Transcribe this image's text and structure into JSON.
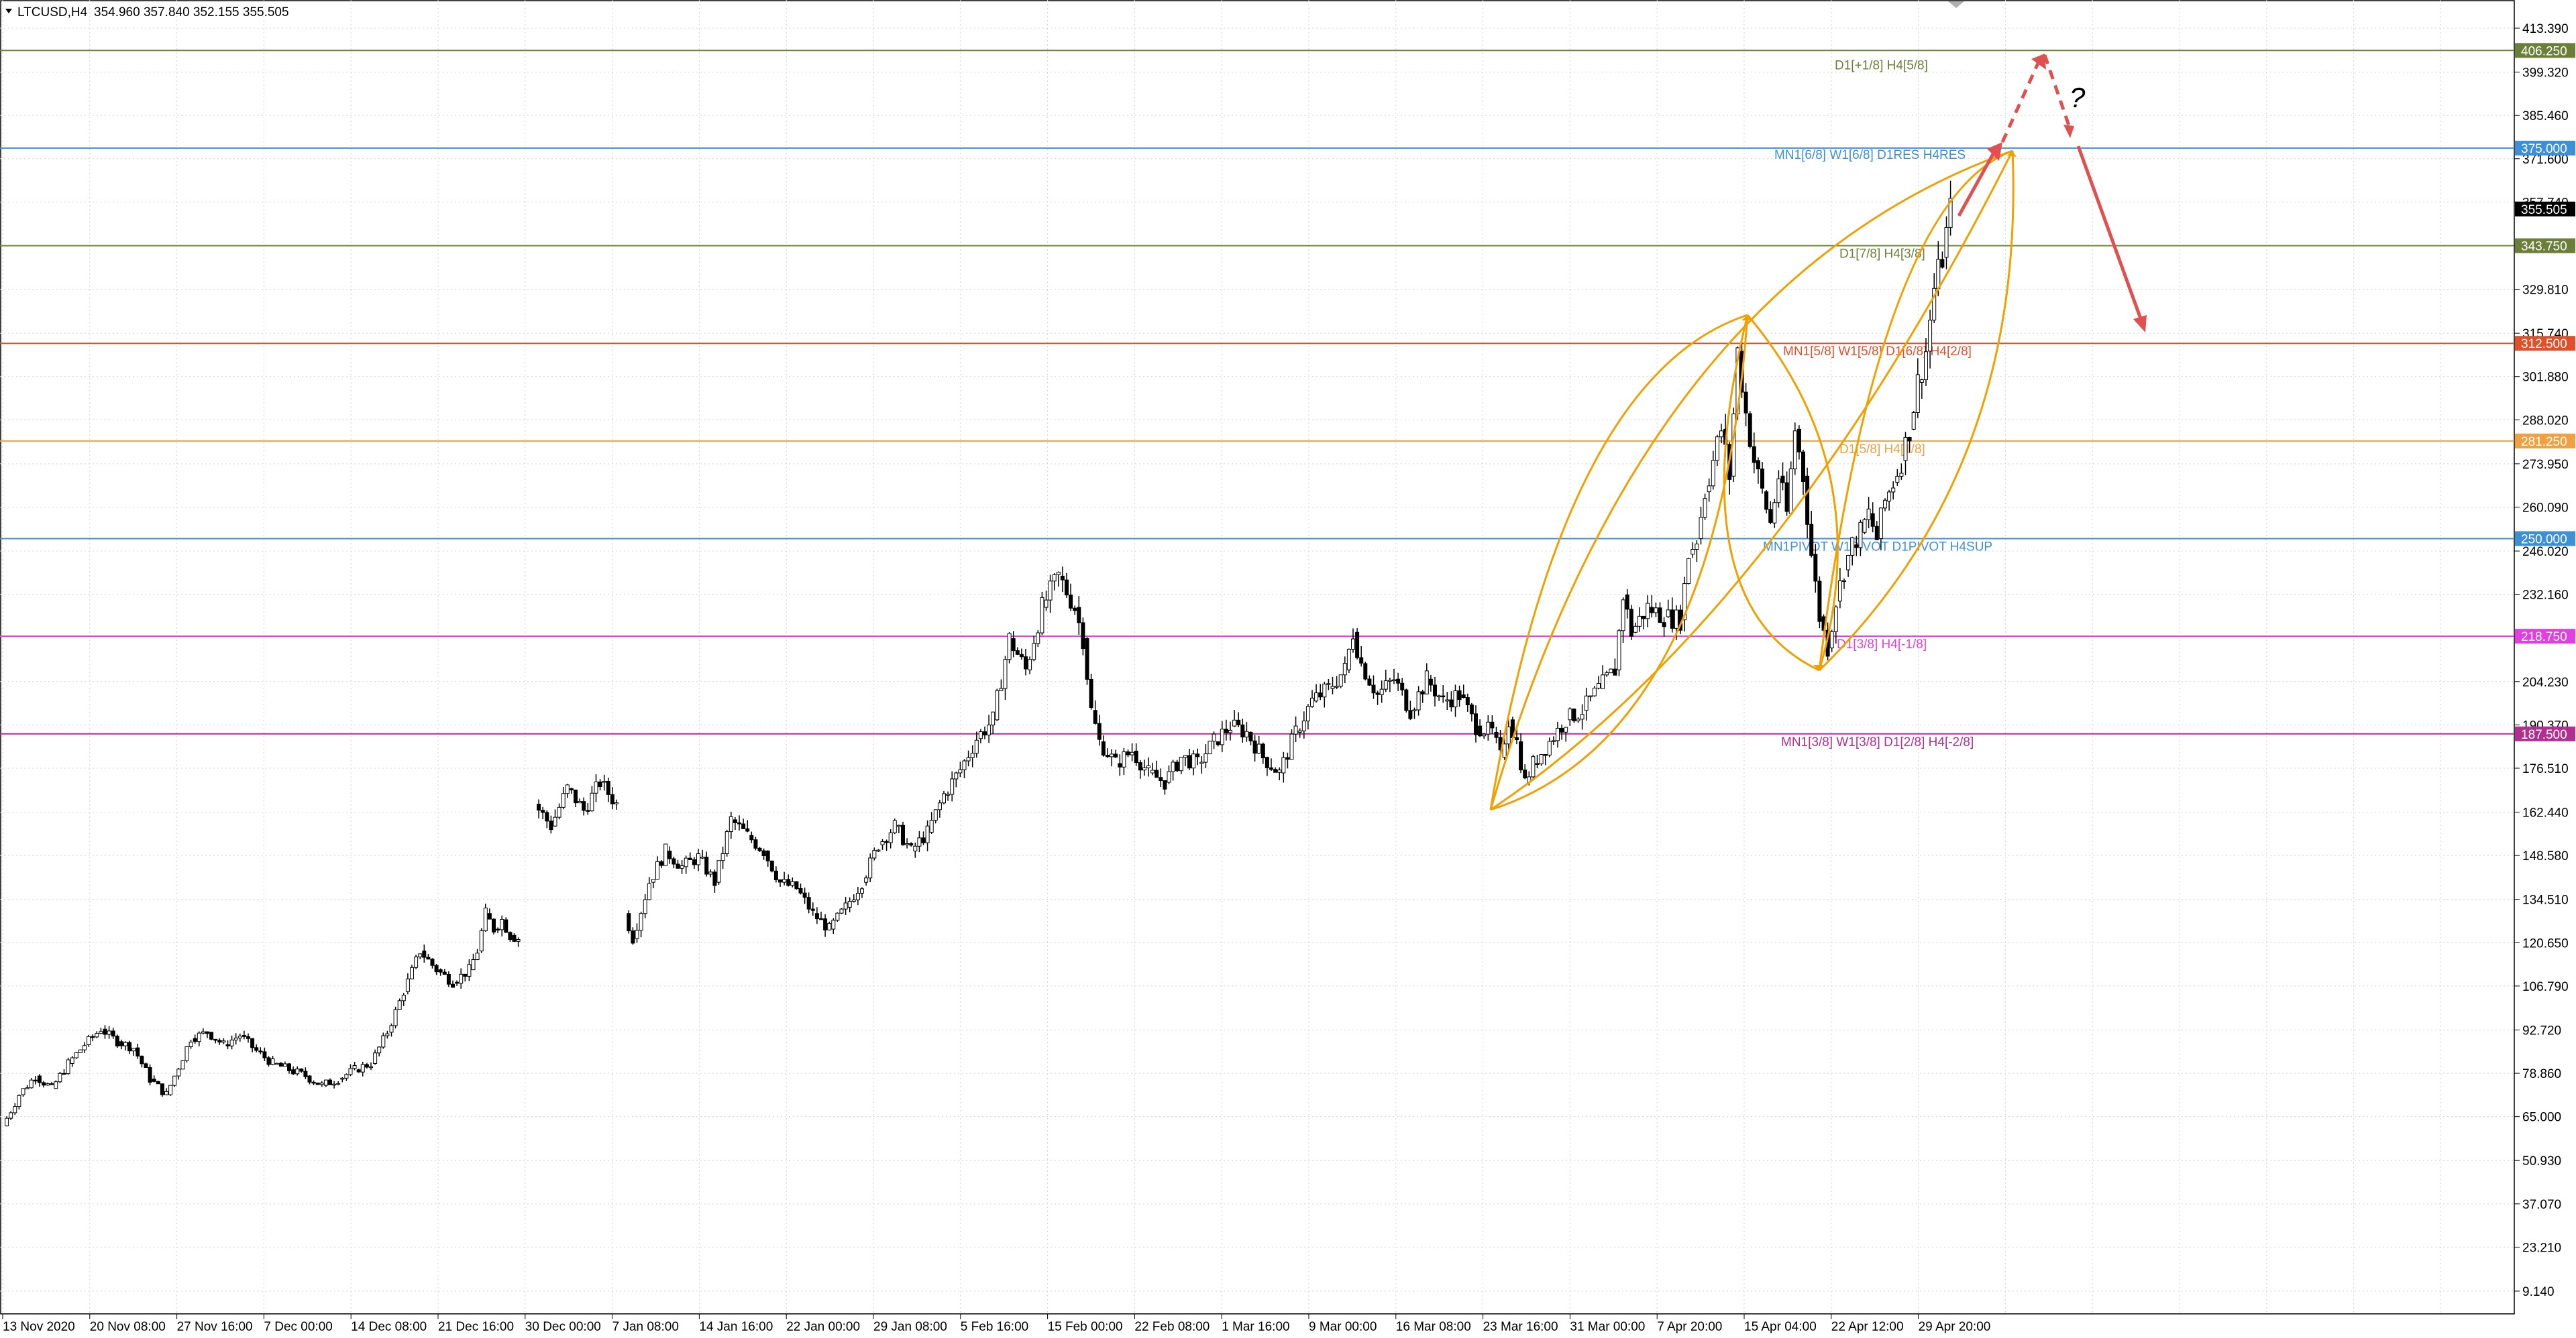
{
  "window": {
    "symbol_title": "LTCUSD,H4",
    "ohlc": "354.960 357.840 352.155 355.505"
  },
  "colors": {
    "candle": "#000000",
    "grid": "#d4d4d4",
    "pattern": "#f0a000",
    "arrow": "#e05050"
  },
  "chart_data": {
    "type": "candlestick",
    "title": "",
    "xlabel": "",
    "ylabel": "",
    "ylim": [
      0,
      420.5
    ],
    "y_ticks": [
      413.39,
      399.32,
      385.46,
      371.6,
      357.74,
      343.75,
      329.81,
      315.74,
      301.88,
      288.02,
      273.95,
      260.09,
      246.02,
      232.16,
      218.75,
      204.23,
      190.37,
      176.51,
      162.44,
      148.58,
      134.51,
      120.65,
      106.79,
      92.72,
      78.86,
      65.0,
      50.93,
      37.07,
      23.21,
      9.14
    ],
    "y_tick_labels": [
      "413.390",
      "399.320",
      "385.460",
      "371.600",
      "357.740",
      "343.750",
      "329.810",
      "315.740",
      "301.880",
      "288.020",
      "273.950",
      "260.090",
      "246.020",
      "232.160",
      "218.750",
      "204.230",
      "190.370",
      "176.510",
      "162.440",
      "148.580",
      "134.510",
      "120.650",
      "106.790",
      "92.720",
      "78.860",
      "65.000",
      "50.930",
      "37.070",
      "23.210",
      "9.140"
    ],
    "x_ticks": [
      "13 Nov 2020",
      "20 Nov 08:00",
      "27 Nov 16:00",
      "7 Dec 00:00",
      "14 Dec 08:00",
      "21 Dec 16:00",
      "30 Dec 00:00",
      "7 Jan 08:00",
      "14 Jan 16:00",
      "22 Jan 00:00",
      "29 Jan 08:00",
      "5 Feb 16:00",
      "15 Feb 00:00",
      "22 Feb 08:00",
      "1 Mar 16:00",
      "9 Mar 00:00",
      "16 Mar 08:00",
      "23 Mar 16:00",
      "31 Mar 00:00",
      "7 Apr 20:00",
      "15 Apr 04:00",
      "22 Apr 12:00",
      "29 Apr 20:00"
    ],
    "last_price": 355.505,
    "last_price_label": "355.505",
    "price_path": [
      [
        0,
        62
      ],
      [
        4,
        72
      ],
      [
        8,
        78
      ],
      [
        12,
        74
      ],
      [
        16,
        82
      ],
      [
        20,
        88
      ],
      [
        24,
        93
      ],
      [
        28,
        89
      ],
      [
        32,
        87
      ],
      [
        36,
        77
      ],
      [
        40,
        72
      ],
      [
        42,
        78
      ],
      [
        46,
        90
      ],
      [
        50,
        92
      ],
      [
        54,
        88
      ],
      [
        58,
        91
      ],
      [
        62,
        86
      ],
      [
        66,
        82
      ],
      [
        70,
        80
      ],
      [
        74,
        78
      ],
      [
        78,
        75
      ],
      [
        82,
        77
      ],
      [
        86,
        80
      ],
      [
        90,
        82
      ],
      [
        94,
        92
      ],
      [
        98,
        105
      ],
      [
        102,
        118
      ],
      [
        106,
        112
      ],
      [
        110,
        108
      ],
      [
        114,
        112
      ],
      [
        116,
        118
      ],
      [
        118,
        130
      ],
      [
        120,
        125
      ],
      [
        122,
        128
      ],
      [
        124,
        123
      ],
      [
        126,
        122
      ],
      [
        130,
        165
      ],
      [
        134,
        158
      ],
      [
        138,
        170
      ],
      [
        142,
        163
      ],
      [
        146,
        172
      ],
      [
        150,
        165
      ],
      [
        152,
        130
      ],
      [
        154,
        122
      ],
      [
        158,
        140
      ],
      [
        162,
        150
      ],
      [
        166,
        145
      ],
      [
        170,
        148
      ],
      [
        174,
        140
      ],
      [
        178,
        160
      ],
      [
        182,
        155
      ],
      [
        186,
        150
      ],
      [
        190,
        140
      ],
      [
        194,
        138
      ],
      [
        198,
        130
      ],
      [
        202,
        125
      ],
      [
        206,
        132
      ],
      [
        210,
        140
      ],
      [
        214,
        152
      ],
      [
        218,
        158
      ],
      [
        222,
        150
      ],
      [
        226,
        156
      ],
      [
        230,
        168
      ],
      [
        234,
        176
      ],
      [
        238,
        186
      ],
      [
        242,
        192
      ],
      [
        246,
        218
      ],
      [
        250,
        208
      ],
      [
        254,
        228
      ],
      [
        258,
        238
      ],
      [
        262,
        228
      ],
      [
        264,
        218
      ],
      [
        266,
        195
      ],
      [
        268,
        185
      ],
      [
        272,
        178
      ],
      [
        276,
        182
      ],
      [
        280,
        175
      ],
      [
        284,
        172
      ],
      [
        288,
        180
      ],
      [
        292,
        178
      ],
      [
        296,
        185
      ],
      [
        300,
        190
      ],
      [
        304,
        188
      ],
      [
        308,
        180
      ],
      [
        312,
        175
      ],
      [
        316,
        188
      ],
      [
        320,
        198
      ],
      [
        324,
        202
      ],
      [
        328,
        208
      ],
      [
        330,
        220
      ],
      [
        332,
        210
      ],
      [
        336,
        200
      ],
      [
        340,
        205
      ],
      [
        344,
        195
      ],
      [
        348,
        205
      ],
      [
        352,
        198
      ],
      [
        356,
        200
      ],
      [
        360,
        190
      ],
      [
        364,
        188
      ],
      [
        366,
        180
      ],
      [
        368,
        192
      ],
      [
        370,
        185
      ],
      [
        372,
        172
      ],
      [
        374,
        178
      ],
      [
        378,
        185
      ],
      [
        382,
        192
      ],
      [
        386,
        195
      ],
      [
        390,
        202
      ],
      [
        394,
        208
      ],
      [
        396,
        232
      ],
      [
        398,
        220
      ],
      [
        402,
        228
      ],
      [
        406,
        225
      ],
      [
        410,
        224
      ],
      [
        412,
        245
      ],
      [
        414,
        250
      ],
      [
        416,
        265
      ],
      [
        418,
        275
      ],
      [
        420,
        285
      ],
      [
        422,
        270
      ],
      [
        424,
        310
      ],
      [
        426,
        290
      ],
      [
        428,
        275
      ],
      [
        430,
        265
      ],
      [
        432,
        255
      ],
      [
        434,
        270
      ],
      [
        436,
        258
      ],
      [
        438,
        285
      ],
      [
        440,
        270
      ],
      [
        442,
        245
      ],
      [
        444,
        225
      ],
      [
        446,
        215
      ],
      [
        448,
        230
      ],
      [
        450,
        240
      ],
      [
        452,
        248
      ],
      [
        454,
        252
      ],
      [
        456,
        258
      ],
      [
        458,
        250
      ],
      [
        460,
        262
      ],
      [
        462,
        268
      ],
      [
        464,
        275
      ],
      [
        466,
        285
      ],
      [
        468,
        300
      ],
      [
        470,
        310
      ],
      [
        472,
        330
      ],
      [
        474,
        340
      ],
      [
        476,
        355
      ]
    ],
    "levels": [
      {
        "price": 406.25,
        "price_label": "406.250",
        "label": "D1[+1/8] H4[5/8]",
        "color": "#6b7f3a"
      },
      {
        "price": 375.0,
        "price_label": "375.000",
        "label": "MN1[6/8] W1[6/8] D1RES H4RES",
        "color": "#3d8fd6"
      },
      {
        "price": 343.75,
        "price_label": "343.750",
        "label": "D1[7/8] H4[3/8]",
        "color": "#6b7f3a"
      },
      {
        "price": 312.5,
        "price_label": "312.500",
        "label": "MN1[5/8] W1[5/8] D1[6/8] H4[2/8]",
        "color": "#e0502a"
      },
      {
        "price": 281.25,
        "price_label": "281.250",
        "label": "D1[5/8] H4[1/8]",
        "color": "#f0a040"
      },
      {
        "price": 250.0,
        "price_label": "250.000",
        "label": "MN1PIVOT W1PIVOT D1PIVOT H4SUP",
        "color": "#3d8fd6"
      },
      {
        "price": 218.75,
        "price_label": "218.750",
        "label": "D1[3/8] H4[-1/8]",
        "color": "#e040e0"
      },
      {
        "price": 187.5,
        "price_label": "187.500",
        "label": "MN1[3/8] W1[3/8] D1[2/8] H4[-2/8]",
        "color": "#b03090"
      }
    ],
    "question_mark": "?"
  }
}
